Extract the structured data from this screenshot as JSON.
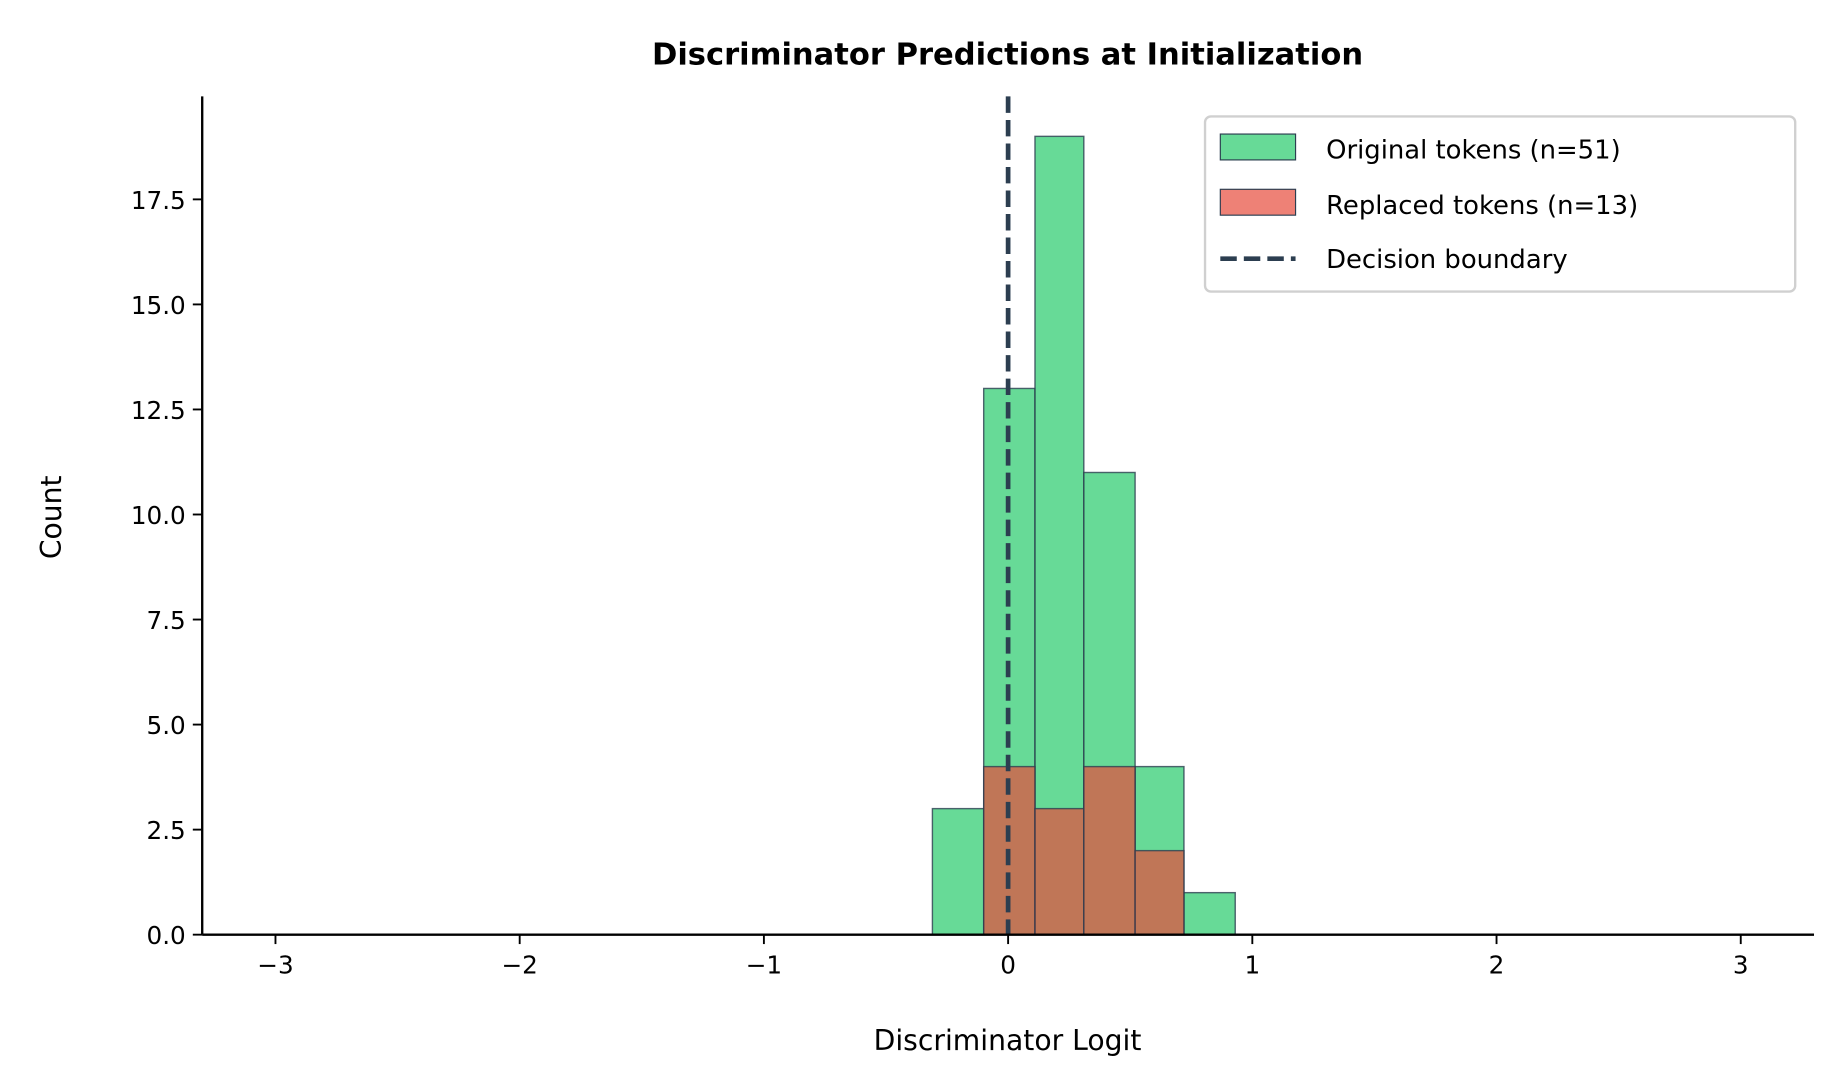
{
  "chart_data": {
    "type": "histogram",
    "title": "Discriminator Predictions at Initialization",
    "xlabel": "Discriminator Logit",
    "ylabel": "Count",
    "xlim": [
      -3.3,
      3.3
    ],
    "ylim": [
      0,
      19.95
    ],
    "xticks": [
      -3,
      -2,
      -1,
      0,
      1,
      2,
      3
    ],
    "xtick_labels": [
      "−3",
      "−2",
      "−1",
      "0",
      "1",
      "2",
      "3"
    ],
    "yticks": [
      0,
      2.5,
      5,
      7.5,
      10,
      12.5,
      15,
      17.5
    ],
    "ytick_labels": [
      "0.0",
      "2.5",
      "5.0",
      "7.5",
      "10.0",
      "12.5",
      "15.0",
      "17.5"
    ],
    "bin_edges": [
      -0.31,
      -0.1,
      0.11,
      0.31,
      0.52,
      0.72,
      0.93
    ],
    "series": [
      {
        "name": "Original tokens (n=51)",
        "values": [
          3,
          13,
          19,
          11,
          4,
          1
        ],
        "color": "#2ecc71",
        "alpha": 0.73
      },
      {
        "name": "Replaced tokens (n=13)",
        "values": [
          0,
          4,
          3,
          4,
          2,
          0
        ],
        "color": "#e74c3c",
        "alpha": 0.7
      }
    ],
    "vline": {
      "name": "Decision boundary",
      "x": 0,
      "style": "dashed",
      "color": "#2c3e50"
    },
    "edge_color": "#2c3e50",
    "grid": false,
    "legend_position": "top-right"
  }
}
